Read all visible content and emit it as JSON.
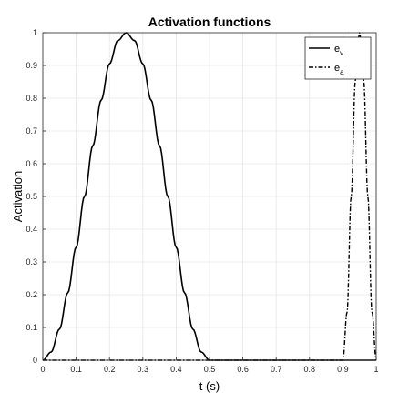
{
  "chart_data": {
    "type": "line",
    "title": "Activation functions",
    "xlabel": "t (s)",
    "ylabel": "Activation",
    "xlim": [
      0,
      1
    ],
    "ylim": [
      0,
      1
    ],
    "xticks": [
      "0",
      "0.1",
      "0.2",
      "0.3",
      "0.4",
      "0.5",
      "0.6",
      "0.7",
      "0.8",
      "0.9",
      "1"
    ],
    "yticks": [
      "0",
      "0.1",
      "0.2",
      "0.3",
      "0.4",
      "0.5",
      "0.6",
      "0.7",
      "0.8",
      "0.9",
      "1"
    ],
    "grid": true,
    "legend_position": "top-right",
    "series": [
      {
        "name_base": "e",
        "name_sub": "v",
        "style": "solid",
        "color": "#000000",
        "x": [
          0,
          0.025,
          0.05,
          0.075,
          0.1,
          0.125,
          0.15,
          0.175,
          0.2,
          0.225,
          0.25,
          0.275,
          0.3,
          0.325,
          0.35,
          0.375,
          0.4,
          0.425,
          0.45,
          0.475,
          0.5,
          0.6,
          0.7,
          0.8,
          0.9,
          1.0
        ],
        "y": [
          0,
          0.025,
          0.095,
          0.206,
          0.345,
          0.5,
          0.655,
          0.794,
          0.905,
          0.976,
          1.0,
          0.976,
          0.905,
          0.794,
          0.655,
          0.5,
          0.345,
          0.206,
          0.095,
          0.025,
          0,
          0,
          0,
          0,
          0,
          0
        ]
      },
      {
        "name_base": "e",
        "name_sub": "a",
        "style": "dashdot",
        "color": "#000000",
        "x": [
          0,
          0.1,
          0.2,
          0.3,
          0.4,
          0.5,
          0.6,
          0.7,
          0.8,
          0.9,
          0.9125,
          0.925,
          0.9375,
          0.95,
          0.9625,
          0.975,
          0.9875,
          1.0
        ],
        "y": [
          0,
          0,
          0,
          0,
          0,
          0,
          0,
          0,
          0,
          0,
          0.146,
          0.5,
          0.854,
          1.0,
          0.854,
          0.5,
          0.146,
          0
        ]
      }
    ]
  }
}
